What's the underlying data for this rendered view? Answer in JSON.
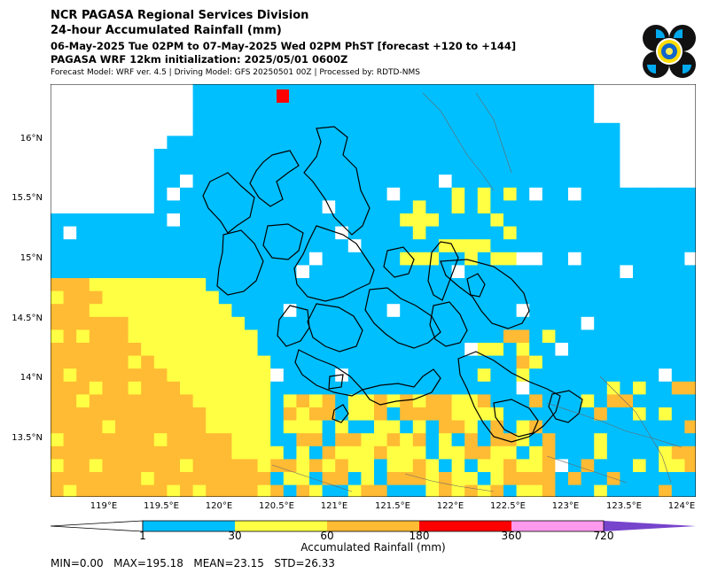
{
  "header": {
    "line1": "NCR PAGASA Regional Services Division",
    "line2": "24-hour Accumulated Rainfall (mm)",
    "line3": "06-May-2025 Tue 02PM to 07-May-2025 Wed 02PM PhST [forecast +120 to +144]",
    "line4": "PAGASA WRF 12km initialization: 2025/05/01 0600Z",
    "line5": "Forecast Model: WRF ver. 4.5 | Driving Model: GFS 20250501 00Z | Processed by: RDTD-NMS"
  },
  "logo_icon": "pagasa-seal-icon",
  "map": {
    "lat_range": [
      13.0,
      16.45
    ],
    "lon_range": [
      118.5,
      124.1
    ],
    "lat_labels": [
      "13.5°N",
      "14°N",
      "14.5°N",
      "15°N",
      "15.5°N",
      "16°N"
    ],
    "lon_labels": [
      "119°E",
      "119.5°E",
      "120°E",
      "120.5°E",
      "121°E",
      "121.5°E",
      "122°E",
      "122.5°E",
      "123°E",
      "123.5°E",
      "124°E"
    ]
  },
  "colorbar": {
    "labels": [
      "1",
      "30",
      "60",
      "180",
      "360",
      "720"
    ],
    "colors": [
      "#00bfff",
      "#ffff44",
      "#ffbb33",
      "#ff0000",
      "#ff99ee",
      "#7744cc"
    ],
    "title": "Accumulated Rainfall (mm)"
  },
  "stats": {
    "text": "MIN=0.00   MAX=195.18   MEAN=23.15   STD=26.33"
  }
}
